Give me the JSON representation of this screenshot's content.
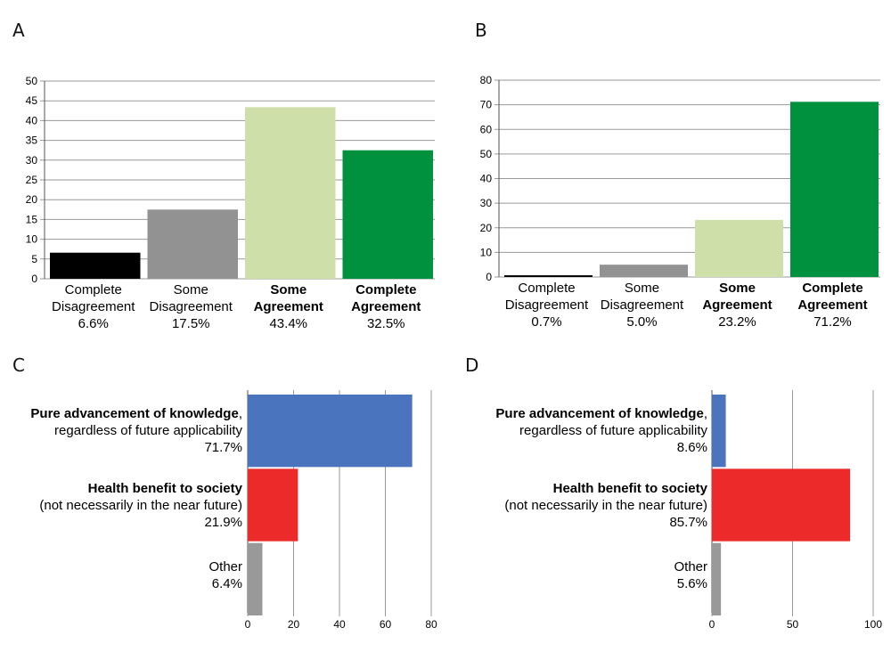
{
  "chart_data": [
    {
      "panel": "A",
      "type": "bar",
      "categories": [
        {
          "line1": "Complete",
          "line2": "Disagreement",
          "pct": "6.6%",
          "bold": false
        },
        {
          "line1": "Some",
          "line2": "Disagreement",
          "pct": "17.5%",
          "bold": false
        },
        {
          "line1": "Some",
          "line2": "Agreement",
          "pct": "43.4%",
          "bold": true
        },
        {
          "line1": "Complete",
          "line2": "Agreement",
          "pct": "32.5%",
          "bold": true
        }
      ],
      "values": [
        6.6,
        17.5,
        43.4,
        32.5
      ],
      "colors": [
        "#000000",
        "#929292",
        "#cfdfaa",
        "#00913f"
      ],
      "ylim": [
        0,
        50
      ],
      "yticks": [
        0,
        5,
        10,
        15,
        20,
        25,
        30,
        35,
        40,
        45,
        50
      ],
      "grid": true
    },
    {
      "panel": "B",
      "type": "bar",
      "categories": [
        {
          "line1": "Complete",
          "line2": "Disagreement",
          "pct": "0.7%",
          "bold": false
        },
        {
          "line1": "Some",
          "line2": "Disagreement",
          "pct": "5.0%",
          "bold": false
        },
        {
          "line1": "Some",
          "line2": "Agreement",
          "pct": "23.2%",
          "bold": true
        },
        {
          "line1": "Complete",
          "line2": "Agreement",
          "pct": "71.2%",
          "bold": true
        }
      ],
      "values": [
        0.7,
        5.0,
        23.2,
        71.2
      ],
      "colors": [
        "#000000",
        "#929292",
        "#cfdfaa",
        "#00913f"
      ],
      "ylim": [
        0,
        80
      ],
      "yticks": [
        0,
        10,
        20,
        30,
        40,
        50,
        60,
        70,
        80
      ],
      "grid": true
    },
    {
      "panel": "C",
      "type": "bar",
      "orientation": "horizontal",
      "categories": [
        {
          "bold_text": "Pure advancement of knowledge",
          "suffix": ",",
          "line2": "regardless of future applicability",
          "pct": "71.7%"
        },
        {
          "bold_text": "Health benefit to society",
          "suffix": "",
          "line2": "(not necessarily in the near future)",
          "pct": "21.9%"
        },
        {
          "bold_text": "",
          "suffix": "",
          "line2": "Other",
          "pct": "6.4%"
        }
      ],
      "values": [
        71.7,
        21.9,
        6.4
      ],
      "colors": [
        "#4a74bd",
        "#ec2a2a",
        "#999999"
      ],
      "xlim": [
        0,
        80
      ],
      "xticks": [
        0,
        20,
        40,
        60,
        80
      ],
      "grid": true
    },
    {
      "panel": "D",
      "type": "bar",
      "orientation": "horizontal",
      "categories": [
        {
          "bold_text": "Pure advancement of knowledge",
          "suffix": ",",
          "line2": "regardless of future applicability",
          "pct": "8.6%"
        },
        {
          "bold_text": "Health benefit to society",
          "suffix": "",
          "line2": "(not necessarily in the near future)",
          "pct": "85.7%"
        },
        {
          "bold_text": "",
          "suffix": "",
          "line2": "Other",
          "pct": "5.6%"
        }
      ],
      "values": [
        8.6,
        85.7,
        5.6
      ],
      "colors": [
        "#4a74bd",
        "#ec2a2a",
        "#999999"
      ],
      "xlim": [
        0,
        100
      ],
      "xticks": [
        0,
        50,
        100
      ],
      "grid": true
    }
  ]
}
